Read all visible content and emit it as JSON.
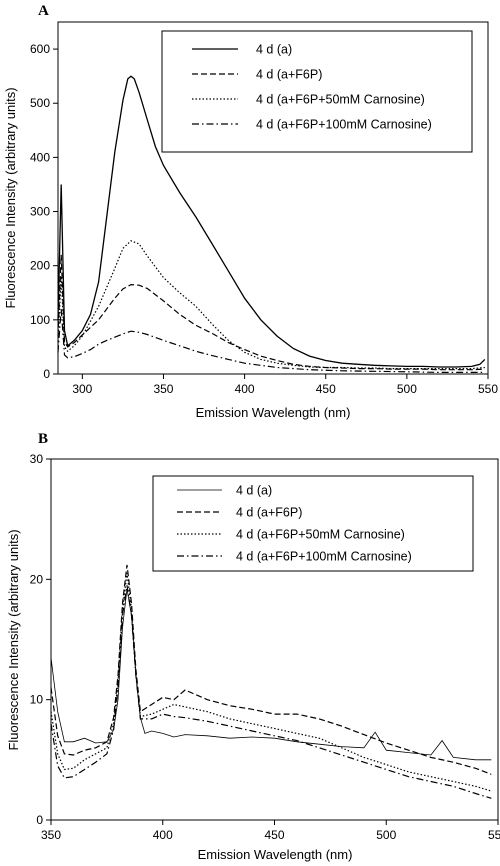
{
  "chart_data": [
    {
      "panel": "A",
      "type": "line",
      "xlabel": "Emission Wavelength (nm)",
      "ylabel": "Fluorescence Intensity (arbitrary units)",
      "xlim": [
        285,
        550
      ],
      "ylim": [
        0,
        650
      ],
      "xticks": [
        300,
        350,
        400,
        450,
        500,
        550
      ],
      "yticks": [
        0,
        100,
        200,
        300,
        400,
        500,
        600
      ],
      "legend_position": "top-right",
      "series": [
        {
          "name": "4 d (a)",
          "style": "solid",
          "x": [
            285,
            287,
            289,
            291,
            295,
            300,
            305,
            310,
            315,
            320,
            325,
            328,
            330,
            332,
            335,
            340,
            345,
            350,
            360,
            370,
            380,
            390,
            400,
            410,
            420,
            430,
            440,
            450,
            460,
            470,
            480,
            490,
            500,
            510,
            520,
            530,
            540,
            545,
            548
          ],
          "y": [
            100,
            350,
            80,
            52,
            62,
            80,
            110,
            170,
            290,
            410,
            505,
            545,
            550,
            545,
            520,
            470,
            420,
            385,
            335,
            290,
            240,
            190,
            140,
            100,
            70,
            47,
            33,
            25,
            20,
            18,
            16,
            15,
            14,
            14,
            13,
            13,
            14,
            18,
            27
          ]
        },
        {
          "name": "4 d (a+F6P)",
          "style": "dashed",
          "x": [
            285,
            287,
            289,
            291,
            295,
            300,
            310,
            320,
            325,
            330,
            335,
            340,
            350,
            360,
            370,
            380,
            390,
            400,
            410,
            420,
            430,
            440,
            450,
            460,
            470,
            480,
            490,
            500,
            510,
            520,
            530,
            540,
            548
          ],
          "y": [
            70,
            220,
            60,
            50,
            58,
            72,
            100,
            140,
            157,
            165,
            164,
            158,
            135,
            110,
            90,
            75,
            58,
            45,
            33,
            25,
            18,
            14,
            12,
            11,
            10,
            10,
            9,
            9,
            9,
            8,
            8,
            8,
            9
          ]
        },
        {
          "name": "4 d (a+F6P+50mM Carnosine)",
          "style": "dotted",
          "x": [
            285,
            287,
            289,
            291,
            295,
            300,
            310,
            320,
            325,
            330,
            335,
            340,
            350,
            360,
            370,
            380,
            390,
            400,
            410,
            420,
            430,
            440,
            450,
            460,
            470,
            480,
            490,
            500,
            510,
            520,
            530,
            540,
            548
          ],
          "y": [
            60,
            180,
            50,
            42,
            52,
            70,
            125,
            195,
            232,
            246,
            240,
            218,
            178,
            150,
            125,
            92,
            62,
            40,
            27,
            20,
            16,
            13,
            12,
            12,
            11,
            11,
            10,
            10,
            10,
            10,
            10,
            10,
            12
          ]
        },
        {
          "name": "4 d (a+F6P+100mM Carnosine)",
          "style": "dashdot",
          "x": [
            285,
            287,
            289,
            291,
            295,
            300,
            305,
            310,
            315,
            320,
            325,
            330,
            335,
            340,
            350,
            360,
            370,
            380,
            390,
            400,
            420,
            440,
            460,
            480,
            500,
            520,
            548
          ],
          "y": [
            40,
            120,
            35,
            30,
            32,
            38,
            45,
            55,
            62,
            68,
            74,
            79,
            77,
            73,
            62,
            52,
            42,
            34,
            27,
            20,
            12,
            8,
            6,
            5,
            4,
            3,
            3
          ]
        }
      ]
    },
    {
      "panel": "B",
      "type": "line",
      "xlabel": "Emission Wavelength (nm)",
      "ylabel": "Fluorescence Intensity (arbitrary units)",
      "xlim": [
        350,
        550
      ],
      "ylim": [
        0,
        30
      ],
      "xticks": [
        350,
        400,
        450,
        500,
        550
      ],
      "yticks": [
        0,
        10,
        20,
        30
      ],
      "legend_position": "top-right",
      "series": [
        {
          "name": "4 d (a)",
          "style": "solid-thin",
          "x": [
            350,
            353,
            356,
            360,
            365,
            370,
            375,
            378,
            380,
            382,
            384,
            386,
            388,
            390,
            392,
            395,
            400,
            405,
            410,
            420,
            430,
            440,
            450,
            460,
            470,
            480,
            490,
            495,
            500,
            510,
            520,
            525,
            530,
            540,
            547
          ],
          "y": [
            13.5,
            9,
            6.5,
            6.5,
            6.8,
            6.4,
            6.5,
            7.5,
            10,
            16,
            19.2,
            17,
            12,
            8.5,
            7.2,
            7.4,
            7.2,
            6.9,
            7.1,
            7.0,
            6.8,
            6.9,
            6.8,
            6.5,
            6.3,
            6.1,
            6.0,
            7.3,
            5.8,
            5.6,
            5.4,
            6.6,
            5.2,
            5.0,
            5.0
          ]
        },
        {
          "name": "4 d (a+F6P)",
          "style": "dashed",
          "x": [
            350,
            353,
            356,
            360,
            365,
            370,
            375,
            378,
            380,
            382,
            384,
            386,
            388,
            390,
            395,
            400,
            405,
            410,
            420,
            430,
            440,
            450,
            460,
            470,
            480,
            490,
            500,
            510,
            520,
            530,
            540,
            547
          ],
          "y": [
            11,
            7,
            5.5,
            5.4,
            5.8,
            6.0,
            6.5,
            8.5,
            12,
            18,
            21.2,
            18,
            12.5,
            9,
            9.6,
            10.2,
            10.0,
            10.8,
            10.0,
            9.5,
            9.2,
            8.8,
            8.8,
            8.4,
            7.8,
            7.1,
            6.4,
            5.8,
            5.2,
            4.8,
            4.3,
            3.8
          ]
        },
        {
          "name": "4 d (a+F6P+50mM Carnosine)",
          "style": "dotted",
          "x": [
            350,
            353,
            356,
            360,
            365,
            370,
            375,
            378,
            380,
            382,
            384,
            386,
            388,
            390,
            395,
            400,
            405,
            410,
            420,
            430,
            440,
            450,
            460,
            470,
            480,
            490,
            500,
            510,
            520,
            530,
            540,
            547
          ],
          "y": [
            9,
            5.5,
            4.2,
            4.3,
            5.0,
            5.5,
            6.0,
            8.0,
            11.5,
            17.5,
            20.5,
            17.5,
            12,
            8.6,
            8.8,
            9.2,
            9.6,
            9.4,
            9.0,
            8.4,
            8.0,
            7.6,
            7.2,
            6.8,
            6.0,
            5.2,
            4.6,
            4.0,
            3.6,
            3.2,
            2.8,
            2.4
          ]
        },
        {
          "name": "4 d (a+F6P+100mM Carnosine)",
          "style": "dashdot",
          "x": [
            350,
            353,
            356,
            360,
            365,
            370,
            375,
            378,
            380,
            382,
            384,
            386,
            388,
            390,
            395,
            400,
            405,
            410,
            420,
            430,
            440,
            450,
            460,
            470,
            480,
            490,
            500,
            510,
            520,
            530,
            540,
            547
          ],
          "y": [
            8,
            4.5,
            3.5,
            3.6,
            4.2,
            4.8,
            5.5,
            7.5,
            11,
            17,
            19.5,
            17,
            12,
            8.4,
            8.4,
            8.8,
            8.6,
            8.5,
            8.2,
            7.8,
            7.4,
            7.0,
            6.6,
            6.0,
            5.4,
            4.8,
            4.2,
            3.6,
            3.2,
            2.8,
            2.2,
            1.8
          ]
        }
      ]
    }
  ]
}
